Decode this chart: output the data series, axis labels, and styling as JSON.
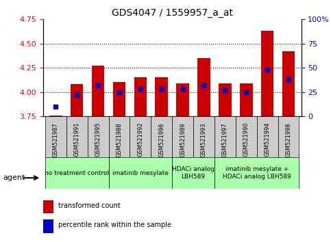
{
  "title": "GDS4047 / 1559957_a_at",
  "samples": [
    "GSM521987",
    "GSM521991",
    "GSM521995",
    "GSM521988",
    "GSM521992",
    "GSM521996",
    "GSM521989",
    "GSM521993",
    "GSM521997",
    "GSM521990",
    "GSM521994",
    "GSM521998"
  ],
  "bar_values": [
    3.76,
    4.08,
    4.27,
    4.1,
    4.15,
    4.15,
    4.09,
    4.35,
    4.09,
    4.09,
    4.63,
    4.42
  ],
  "percentile_values": [
    10,
    22,
    32,
    25,
    28,
    28,
    28,
    32,
    27,
    25,
    48,
    38
  ],
  "bar_color": "#cc0000",
  "percentile_color": "#0000cc",
  "ylim_left": [
    3.75,
    4.75
  ],
  "ylim_right": [
    0,
    100
  ],
  "yticks_left": [
    3.75,
    4.0,
    4.25,
    4.5,
    4.75
  ],
  "yticks_right": [
    0,
    25,
    50,
    75,
    100
  ],
  "ytick_labels_right": [
    "0",
    "25",
    "50",
    "75",
    "100%"
  ],
  "gridlines": [
    4.0,
    4.25,
    4.5
  ],
  "groups": [
    {
      "label": "no treatment control",
      "samples": [
        "GSM521987",
        "GSM521991",
        "GSM521995"
      ],
      "color": "#aaffaa"
    },
    {
      "label": "imatinib mesylate",
      "samples": [
        "GSM521988",
        "GSM521992",
        "GSM521996"
      ],
      "color": "#aaffaa"
    },
    {
      "label": "HDACi analog\nLBH589",
      "samples": [
        "GSM521989",
        "GSM521993"
      ],
      "color": "#aaffaa"
    },
    {
      "label": "imatinib mesylate +\nHDACi analog LBH589",
      "samples": [
        "GSM521997",
        "GSM521990",
        "GSM521994",
        "GSM521998"
      ],
      "color": "#aaffaa"
    }
  ],
  "agent_label": "agent",
  "legend_tc": "transformed count",
  "legend_pr": "percentile rank within the sample",
  "bar_width": 0.6,
  "background_color": "#ffffff",
  "plot_bg": "#ffffff",
  "sample_box_color": "#cccccc"
}
